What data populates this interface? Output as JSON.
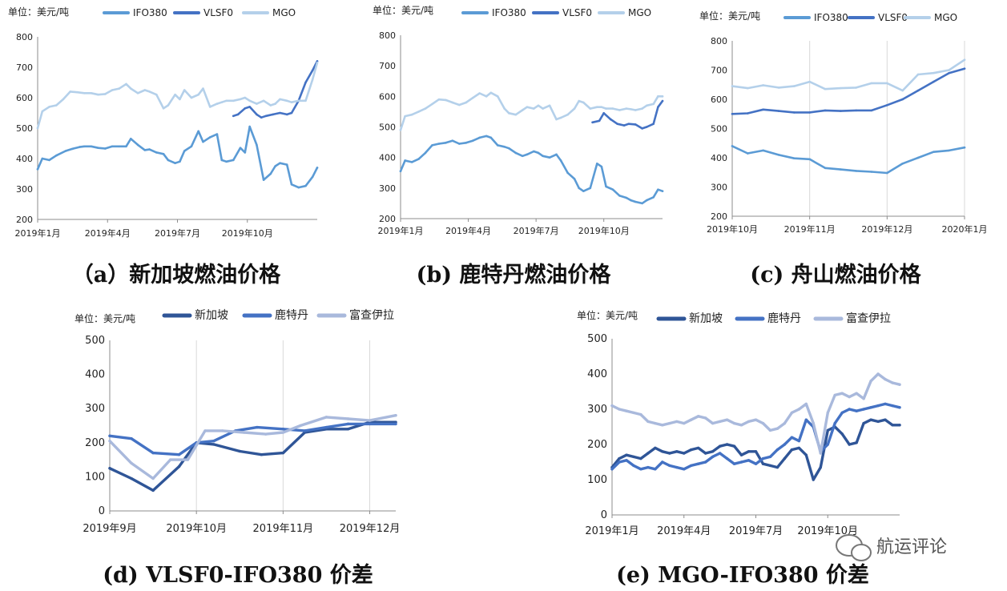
{
  "unit_label": "单位：美元/吨",
  "watermark": "航运评论",
  "colors": {
    "IFO380": "#5b9bd5",
    "VLSF0": "#4472c4",
    "MGO": "#b4d0ea",
    "新加坡": "#2f5597",
    "鹿特丹": "#4472c4",
    "富查伊拉": "#a9b9dc"
  },
  "chart_data": [
    {
      "id": "a",
      "type": "line",
      "caption": "（a）新加坡燃油价格",
      "xticks": [
        "2019年1月",
        "2019年4月",
        "2019年7月",
        "2019年10月"
      ],
      "xticks_pos": [
        0,
        3,
        6,
        9
      ],
      "xlim": [
        0,
        12
      ],
      "ylim": [
        200,
        800
      ],
      "yticks": [
        200,
        300,
        400,
        500,
        600,
        700,
        800
      ],
      "grid": false,
      "legend_position": "top",
      "series": [
        {
          "name": "IFO380",
          "x": [
            0,
            0.2,
            0.5,
            0.8,
            1.2,
            1.5,
            1.8,
            2.0,
            2.3,
            2.6,
            2.9,
            3.2,
            3.5,
            3.8,
            4.0,
            4.3,
            4.6,
            4.8,
            5.1,
            5.4,
            5.6,
            5.9,
            6.1,
            6.3,
            6.6,
            6.9,
            7.1,
            7.4,
            7.7,
            7.9,
            8.1,
            8.4,
            8.7,
            8.9,
            9.1,
            9.4,
            9.7,
            10.0,
            10.2,
            10.4,
            10.7,
            10.9,
            11.2,
            11.5,
            11.8,
            12.0
          ],
          "values": [
            365,
            400,
            395,
            410,
            425,
            432,
            438,
            440,
            440,
            435,
            433,
            440,
            440,
            440,
            465,
            445,
            428,
            430,
            420,
            415,
            395,
            385,
            390,
            425,
            440,
            490,
            455,
            470,
            480,
            395,
            390,
            395,
            435,
            420,
            505,
            445,
            330,
            350,
            375,
            385,
            380,
            315,
            305,
            310,
            340,
            370
          ]
        },
        {
          "name": "VLSF0",
          "x": [
            8.4,
            8.6,
            8.9,
            9.1,
            9.4,
            9.6,
            9.8,
            10.1,
            10.4,
            10.7,
            10.9,
            11.2,
            11.5,
            11.8,
            12.0
          ],
          "values": [
            540,
            545,
            565,
            570,
            545,
            535,
            540,
            545,
            550,
            545,
            550,
            590,
            650,
            690,
            720
          ]
        },
        {
          "name": "MGO",
          "x": [
            0,
            0.2,
            0.5,
            0.8,
            1.1,
            1.4,
            1.7,
            2.0,
            2.3,
            2.6,
            2.9,
            3.2,
            3.5,
            3.8,
            4.0,
            4.3,
            4.6,
            4.8,
            5.1,
            5.4,
            5.6,
            5.9,
            6.1,
            6.3,
            6.6,
            6.9,
            7.1,
            7.4,
            7.7,
            7.9,
            8.1,
            8.4,
            8.7,
            8.9,
            9.1,
            9.4,
            9.7,
            10.0,
            10.2,
            10.4,
            10.7,
            10.9,
            11.2,
            11.5,
            11.8,
            12.0
          ],
          "values": [
            500,
            555,
            570,
            575,
            595,
            620,
            618,
            615,
            615,
            610,
            612,
            625,
            630,
            645,
            630,
            615,
            625,
            620,
            610,
            565,
            575,
            610,
            595,
            625,
            600,
            610,
            630,
            570,
            580,
            585,
            590,
            590,
            595,
            600,
            590,
            580,
            590,
            575,
            580,
            595,
            590,
            585,
            590,
            590,
            660,
            715
          ]
        }
      ]
    },
    {
      "id": "b",
      "type": "line",
      "caption": "(b) 鹿特丹燃油价格",
      "xticks": [
        "2019年1月",
        "2019年4月",
        "2019年7月",
        "2019年10月"
      ],
      "xticks_pos": [
        0,
        3,
        6,
        9
      ],
      "xlim": [
        0,
        11.6
      ],
      "ylim": [
        200,
        800
      ],
      "yticks": [
        200,
        300,
        400,
        500,
        600,
        700,
        800
      ],
      "grid": false,
      "legend_position": "top",
      "series": [
        {
          "name": "IFO380",
          "x": [
            0,
            0.2,
            0.5,
            0.8,
            1.1,
            1.4,
            1.7,
            2.0,
            2.3,
            2.6,
            2.9,
            3.2,
            3.5,
            3.8,
            4.0,
            4.3,
            4.6,
            4.8,
            5.1,
            5.4,
            5.6,
            5.9,
            6.1,
            6.3,
            6.6,
            6.9,
            7.1,
            7.4,
            7.7,
            7.9,
            8.1,
            8.4,
            8.7,
            8.9,
            9.1,
            9.4,
            9.7,
            10.0,
            10.2,
            10.4,
            10.7,
            10.9,
            11.2,
            11.4,
            11.6
          ],
          "values": [
            355,
            390,
            385,
            395,
            415,
            440,
            445,
            448,
            455,
            445,
            448,
            455,
            465,
            470,
            465,
            440,
            435,
            430,
            415,
            405,
            410,
            420,
            415,
            405,
            400,
            410,
            390,
            350,
            330,
            300,
            290,
            300,
            380,
            370,
            305,
            295,
            275,
            268,
            260,
            255,
            250,
            260,
            270,
            295,
            290
          ]
        },
        {
          "name": "VLSF0",
          "x": [
            8.5,
            8.8,
            9.0,
            9.3,
            9.6,
            9.9,
            10.1,
            10.4,
            10.7,
            10.9,
            11.2,
            11.4,
            11.6
          ],
          "values": [
            515,
            520,
            545,
            525,
            510,
            505,
            510,
            508,
            495,
            500,
            510,
            565,
            585
          ]
        },
        {
          "name": "MGO",
          "x": [
            0,
            0.2,
            0.5,
            0.8,
            1.1,
            1.4,
            1.7,
            2.0,
            2.3,
            2.6,
            2.9,
            3.2,
            3.5,
            3.8,
            4.0,
            4.3,
            4.6,
            4.8,
            5.1,
            5.4,
            5.6,
            5.9,
            6.1,
            6.3,
            6.6,
            6.9,
            7.1,
            7.4,
            7.7,
            7.9,
            8.1,
            8.4,
            8.7,
            8.9,
            9.1,
            9.4,
            9.7,
            10.0,
            10.2,
            10.4,
            10.7,
            10.9,
            11.2,
            11.4,
            11.6
          ],
          "values": [
            490,
            535,
            540,
            550,
            560,
            575,
            590,
            588,
            580,
            572,
            580,
            595,
            610,
            600,
            612,
            600,
            560,
            545,
            540,
            555,
            565,
            560,
            570,
            560,
            570,
            525,
            530,
            540,
            560,
            585,
            580,
            560,
            565,
            565,
            560,
            560,
            555,
            560,
            558,
            555,
            560,
            570,
            575,
            600,
            600
          ]
        }
      ]
    },
    {
      "id": "c",
      "type": "line",
      "caption": "(c) 舟山燃油价格",
      "xticks": [
        "2019年10月",
        "2019年11月",
        "2019年12月",
        "2020年1月"
      ],
      "xticks_pos": [
        0,
        1,
        2,
        3
      ],
      "xlim": [
        0,
        3
      ],
      "ylim": [
        200,
        800
      ],
      "yticks": [
        200,
        300,
        400,
        500,
        600,
        700,
        800
      ],
      "grid": true,
      "legend_position": "top",
      "series": [
        {
          "name": "IFO380",
          "x": [
            0,
            0.2,
            0.4,
            0.6,
            0.8,
            1.0,
            1.2,
            1.4,
            1.6,
            1.8,
            2.0,
            2.2,
            2.4,
            2.6,
            2.8,
            3.0
          ],
          "values": [
            440,
            415,
            425,
            410,
            398,
            395,
            365,
            360,
            355,
            352,
            348,
            380,
            400,
            420,
            425,
            435
          ]
        },
        {
          "name": "VLSF0",
          "x": [
            0,
            0.2,
            0.4,
            0.6,
            0.8,
            1.0,
            1.2,
            1.4,
            1.6,
            1.8,
            2.0,
            2.2,
            2.4,
            2.6,
            2.8,
            3.0
          ],
          "values": [
            550,
            552,
            565,
            560,
            555,
            555,
            562,
            560,
            562,
            562,
            580,
            600,
            630,
            660,
            690,
            705
          ]
        },
        {
          "name": "MGO",
          "x": [
            0,
            0.2,
            0.4,
            0.6,
            0.8,
            1.0,
            1.2,
            1.4,
            1.6,
            1.8,
            2.0,
            2.2,
            2.4,
            2.6,
            2.8,
            3.0
          ],
          "values": [
            645,
            638,
            648,
            640,
            645,
            660,
            635,
            638,
            640,
            655,
            655,
            630,
            685,
            690,
            700,
            735
          ]
        }
      ]
    },
    {
      "id": "d",
      "type": "line",
      "caption": "(d) VLSF0-IFO380 价差",
      "xticks": [
        "2019年9月",
        "2019年10月",
        "2019年11月",
        "2019年12月"
      ],
      "xticks_pos": [
        0,
        1,
        2,
        3
      ],
      "xlim": [
        0,
        3.3
      ],
      "ylim": [
        0,
        500
      ],
      "yticks": [
        0,
        100,
        200,
        300,
        400,
        500
      ],
      "grid": true,
      "legend_position": "top",
      "series": [
        {
          "name": "新加坡",
          "x": [
            0,
            0.25,
            0.5,
            0.8,
            1.0,
            1.2,
            1.5,
            1.75,
            2.0,
            2.25,
            2.5,
            2.75,
            3.0,
            3.3
          ],
          "values": [
            125,
            95,
            60,
            130,
            200,
            195,
            175,
            165,
            170,
            230,
            240,
            240,
            260,
            260
          ]
        },
        {
          "name": "鹿特丹",
          "x": [
            0,
            0.25,
            0.5,
            0.8,
            1.0,
            1.2,
            1.45,
            1.7,
            2.0,
            2.25,
            2.5,
            2.75,
            3.0,
            3.3
          ],
          "values": [
            220,
            212,
            170,
            165,
            200,
            205,
            235,
            245,
            240,
            235,
            245,
            255,
            255,
            255
          ]
        },
        {
          "name": "富查伊拉",
          "x": [
            0,
            0.25,
            0.5,
            0.7,
            0.9,
            1.1,
            1.3,
            1.55,
            1.8,
            2.0,
            2.2,
            2.5,
            2.75,
            3.0,
            3.3
          ],
          "values": [
            205,
            140,
            95,
            150,
            150,
            235,
            235,
            230,
            225,
            230,
            250,
            275,
            270,
            265,
            280
          ]
        }
      ]
    },
    {
      "id": "e",
      "type": "line",
      "caption": "(e) MGO-IFO380 价差",
      "xticks": [
        "2019年1月",
        "2019年4月",
        "2019年7月",
        "2019年10月"
      ],
      "xticks_pos": [
        0,
        3,
        6,
        9
      ],
      "xlim": [
        0,
        12
      ],
      "ylim": [
        0,
        500
      ],
      "yticks": [
        0,
        100,
        200,
        300,
        400,
        500
      ],
      "grid": false,
      "legend_position": "top",
      "series": [
        {
          "name": "新加坡",
          "x": [
            0,
            0.3,
            0.6,
            0.9,
            1.2,
            1.5,
            1.8,
            2.1,
            2.4,
            2.7,
            3.0,
            3.3,
            3.6,
            3.9,
            4.2,
            4.5,
            4.8,
            5.1,
            5.4,
            5.7,
            6.0,
            6.3,
            6.6,
            6.9,
            7.2,
            7.5,
            7.8,
            8.1,
            8.4,
            8.7,
            9.0,
            9.3,
            9.6,
            9.9,
            10.2,
            10.5,
            10.8,
            11.1,
            11.4,
            11.7,
            12.0
          ],
          "values": [
            135,
            160,
            170,
            165,
            160,
            175,
            190,
            180,
            175,
            180,
            175,
            185,
            190,
            175,
            180,
            195,
            200,
            195,
            170,
            180,
            180,
            145,
            140,
            135,
            160,
            185,
            190,
            170,
            100,
            135,
            240,
            250,
            230,
            200,
            205,
            260,
            270,
            265,
            270,
            255,
            255
          ]
        },
        {
          "name": "鹿特丹",
          "x": [
            0,
            0.3,
            0.6,
            0.9,
            1.2,
            1.5,
            1.8,
            2.1,
            2.4,
            2.7,
            3.0,
            3.3,
            3.6,
            3.9,
            4.2,
            4.5,
            4.8,
            5.1,
            5.4,
            5.7,
            6.0,
            6.3,
            6.6,
            6.9,
            7.2,
            7.5,
            7.8,
            8.1,
            8.4,
            8.7,
            9.0,
            9.3,
            9.6,
            9.9,
            10.2,
            10.5,
            10.8,
            11.1,
            11.4,
            11.7,
            12.0
          ],
          "values": [
            130,
            150,
            155,
            140,
            130,
            135,
            130,
            150,
            140,
            135,
            130,
            140,
            145,
            150,
            165,
            175,
            160,
            145,
            150,
            155,
            145,
            160,
            165,
            185,
            200,
            220,
            210,
            270,
            250,
            180,
            200,
            260,
            290,
            300,
            295,
            300,
            305,
            310,
            315,
            310,
            305
          ]
        },
        {
          "name": "富查伊拉",
          "x": [
            0,
            0.3,
            0.6,
            0.9,
            1.2,
            1.5,
            1.8,
            2.1,
            2.4,
            2.7,
            3.0,
            3.3,
            3.6,
            3.9,
            4.2,
            4.5,
            4.8,
            5.1,
            5.4,
            5.7,
            6.0,
            6.3,
            6.6,
            6.9,
            7.2,
            7.5,
            7.8,
            8.1,
            8.4,
            8.7,
            9.0,
            9.3,
            9.6,
            9.9,
            10.2,
            10.5,
            10.8,
            11.1,
            11.4,
            11.7,
            12.0
          ],
          "values": [
            310,
            300,
            295,
            290,
            285,
            265,
            260,
            255,
            260,
            265,
            260,
            270,
            280,
            275,
            260,
            265,
            270,
            260,
            255,
            265,
            270,
            260,
            240,
            245,
            260,
            290,
            300,
            315,
            260,
            175,
            290,
            340,
            345,
            335,
            345,
            330,
            380,
            400,
            385,
            375,
            370
          ]
        }
      ]
    }
  ]
}
